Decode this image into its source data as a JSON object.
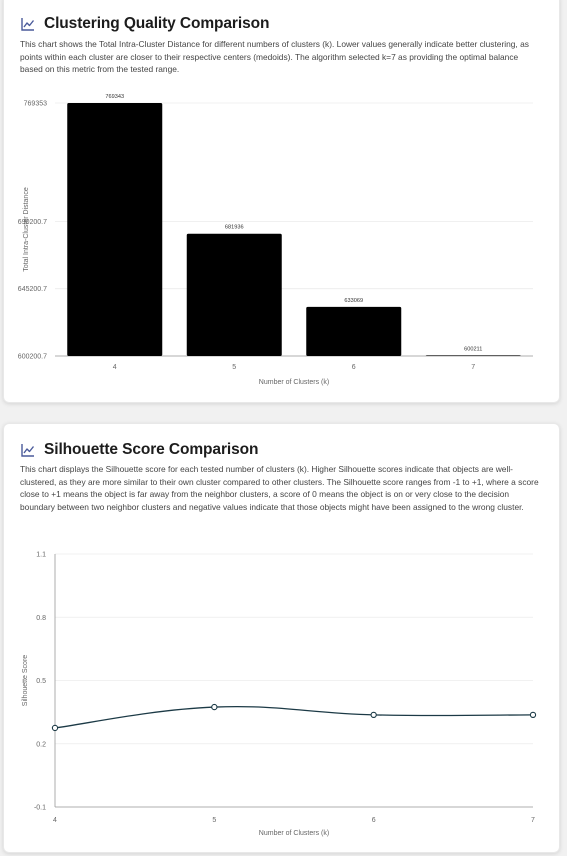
{
  "colors": {
    "bar": "#000000",
    "line": "#1c3a46",
    "grid": "#ececec",
    "axis": "#999999",
    "icon": "#4a5a9a"
  },
  "cluster_card": {
    "title": "Clustering Quality Comparison",
    "icon": "line-chart-icon",
    "description": "This chart shows the Total Intra-Cluster Distance for different numbers of clusters (k). Lower values generally indicate better clustering, as points within each cluster are closer to their respective centers (medoids). The algorithm selected k=7 as providing the optimal balance based on this metric from the tested range."
  },
  "silhouette_card": {
    "title": "Silhouette Score Comparison",
    "icon": "line-chart-icon",
    "description": "This chart displays the Silhouette score for each tested number of clusters (k). Higher Silhouette scores indicate that objects are well-clustered, as they are more similar to their own cluster compared to other clusters. The Silhouette score ranges from -1 to +1, where a score close to +1 means the object is far away from the neighbor clusters, a score of 0 means the object is on or very close to the decision boundary between two neighbor clusters and negative values indicate that those objects might have been assigned to the wrong cluster."
  },
  "chart_data": [
    {
      "type": "bar",
      "categories": [
        "4",
        "5",
        "6",
        "7"
      ],
      "values": [
        769343,
        681936,
        633069,
        600211
      ],
      "data_labels": [
        "769343",
        "681936",
        "633069",
        "600211"
      ],
      "title": "",
      "xlabel": "Number of Clusters (k)",
      "ylabel": "Total Intra-Cluster Distance",
      "ylim": [
        600200.7,
        769353
      ],
      "yticks": [
        600200.7,
        645200.7,
        690200.7,
        769353
      ],
      "ytick_labels": [
        "600200.7",
        "645200.7",
        "690200.7",
        "769353"
      ],
      "grid": true,
      "legend": "none"
    },
    {
      "type": "line",
      "x": [
        "4",
        "5",
        "6",
        "7"
      ],
      "values": [
        0.275,
        0.374,
        0.337,
        0.337
      ],
      "title": "",
      "xlabel": "Number of Clusters (k)",
      "ylabel": "Silhouette Score",
      "ylim": [
        -0.1,
        1.1
      ],
      "yticks": [
        -0.1,
        0.2,
        0.5,
        0.8,
        1.1
      ],
      "ytick_labels": [
        "-0.1",
        "0.2",
        "0.5",
        "0.8",
        "1.1"
      ],
      "grid": true,
      "legend": "none"
    }
  ]
}
